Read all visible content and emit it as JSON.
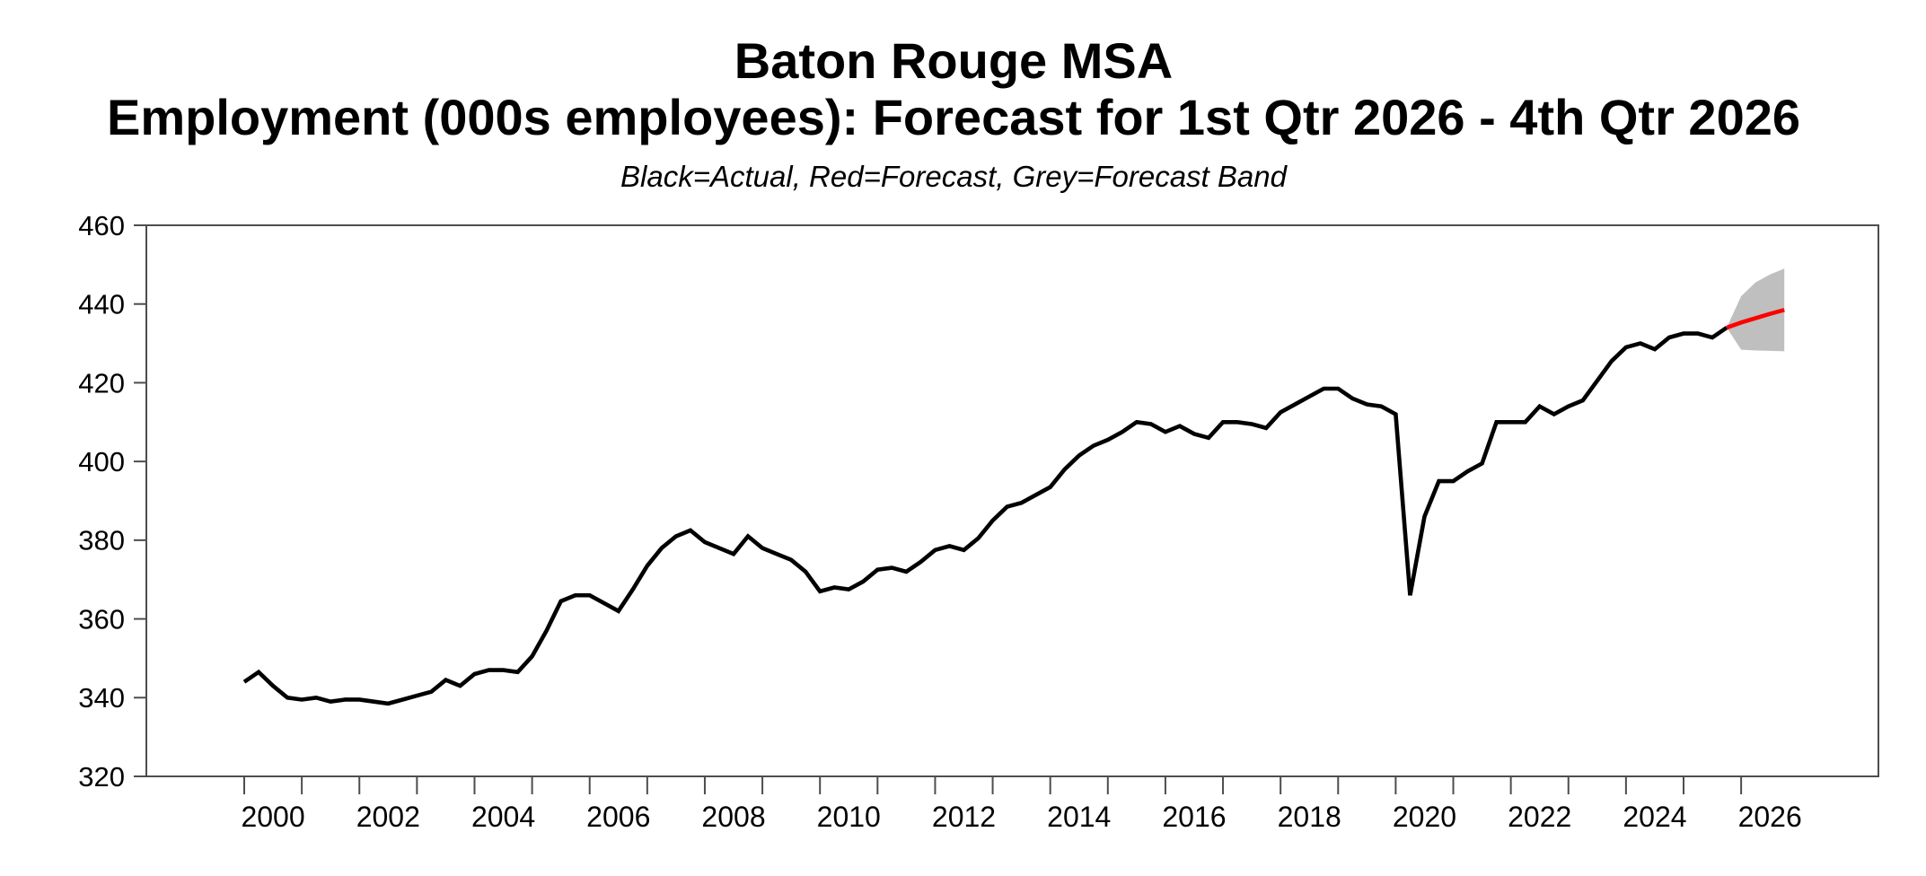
{
  "chart_data": {
    "type": "line",
    "title": "Baton Rouge MSA",
    "subtitle": "Employment (000s employees): Forecast for 1st Qtr 2026 - 4th Qtr 2026",
    "legend_note": "Black=Actual, Red=Forecast, Grey=Forecast Band",
    "ylim": [
      320,
      460
    ],
    "y_ticks": [
      320,
      340,
      360,
      380,
      400,
      420,
      440,
      460
    ],
    "x_axis": {
      "first_tick_year": 2000,
      "last_tick_year": 2026,
      "label_years": [
        2000,
        2002,
        2004,
        2006,
        2008,
        2010,
        2012,
        2014,
        2016,
        2018,
        2020,
        2022,
        2024,
        2026
      ]
    },
    "grid": false,
    "legend_position": "none (text note above plot)",
    "colors": {
      "actual": "#000000",
      "forecast": "#ff0000",
      "band": "#bfbfbf",
      "axis": "#4d4d4d"
    },
    "series": [
      {
        "name": "Actual",
        "frequency": "quarterly",
        "start_period": "2000Q1",
        "end_period": "2025Q4",
        "values": [
          344,
          346.5,
          343,
          340,
          339.5,
          340,
          339,
          339.5,
          339.5,
          339,
          338.5,
          339.5,
          340.5,
          341.5,
          344.5,
          343,
          346,
          347,
          347,
          346.5,
          350.5,
          357,
          364.5,
          366,
          366,
          364,
          362,
          367.5,
          373.5,
          378,
          381,
          382.5,
          379.5,
          378,
          376.5,
          381,
          378,
          376.5,
          375,
          372,
          367,
          368,
          367.5,
          369.5,
          372.5,
          373,
          372,
          374.5,
          377.5,
          378.5,
          377.5,
          380.5,
          385,
          388.5,
          389.5,
          391.5,
          393.5,
          398,
          401.5,
          404,
          405.5,
          407.5,
          410,
          409.5,
          407.5,
          409,
          407,
          406,
          410,
          410,
          409.5,
          408.5,
          412.5,
          414.5,
          416.5,
          418.5,
          418.5,
          416,
          414.5,
          414,
          412,
          366,
          386,
          395,
          395,
          397.5,
          399.5,
          410,
          410,
          410,
          414,
          412,
          414,
          415.5,
          420.5,
          425.5,
          429,
          430,
          428.5,
          431.5,
          432.5,
          432.5,
          431.5,
          434
        ]
      },
      {
        "name": "Forecast",
        "frequency": "quarterly",
        "start_period": "2026Q1",
        "end_period": "2026Q4",
        "values": [
          435.3,
          436.4,
          437.5,
          438.5
        ]
      },
      {
        "name": "Forecast Band",
        "frequency": "quarterly",
        "start_period": "2026Q1",
        "end_period": "2026Q4",
        "upper": [
          442,
          445.5,
          447.5,
          449
        ],
        "lower": [
          428.4,
          428.2,
          428.1,
          428
        ]
      }
    ]
  }
}
